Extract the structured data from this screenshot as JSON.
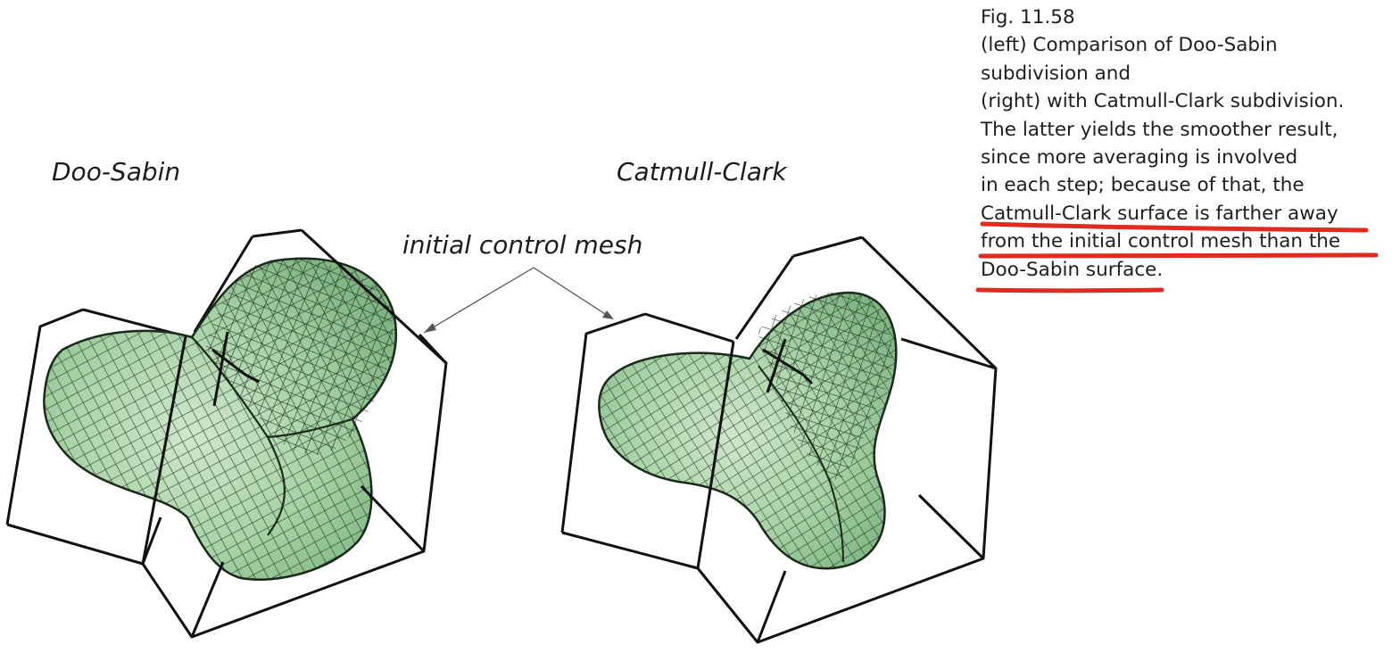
{
  "figure": {
    "labels": {
      "left": "Doo-Sabin",
      "right": "Catmull-Clark",
      "mesh": "initial control mesh"
    },
    "colors": {
      "surface_fill": "#9ccb9e",
      "surface_fill_light": "#c4e2c2",
      "surface_grid": "#1b2a1b",
      "cage": "#111111",
      "leader": "#555555"
    }
  },
  "caption": {
    "lines": [
      "Fig. 11.58",
      "(left) Comparison of Doo-Sabin",
      "subdivision and",
      "(right) with Catmull-Clark subdivision.",
      "The latter yields the smoother result,",
      "since more averaging is involved",
      "in each step; because of that, the",
      "Catmull-Clark surface is farther away",
      "from the initial control mesh than the",
      "Doo-Sabin surface."
    ],
    "highlight_color": "#e02b20"
  }
}
